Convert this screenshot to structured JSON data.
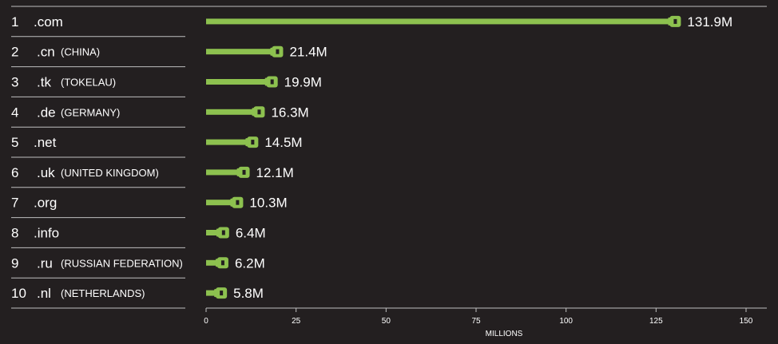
{
  "chart_data": {
    "type": "bar",
    "xlabel": "MILLIONS",
    "xlim": [
      0,
      150
    ],
    "xticks": [
      0,
      25,
      50,
      75,
      100,
      125,
      150
    ],
    "grid": false,
    "colors": {
      "bar": "#8dc14f",
      "background": "#231f20",
      "text": "#ffffff",
      "divider": "#bfbfbf"
    },
    "rows": [
      {
        "rank": "1",
        "tld": ".com",
        "country": "",
        "value": 131.9,
        "label": "131.9M"
      },
      {
        "rank": "2",
        "tld": ".cn",
        "country": "(CHINA)",
        "value": 21.4,
        "label": "21.4M"
      },
      {
        "rank": "3",
        "tld": ".tk",
        "country": "(TOKELAU)",
        "value": 19.9,
        "label": "19.9M"
      },
      {
        "rank": "4",
        "tld": ".de",
        "country": "(GERMANY)",
        "value": 16.3,
        "label": "16.3M"
      },
      {
        "rank": "5",
        "tld": ".net",
        "country": "",
        "value": 14.5,
        "label": "14.5M"
      },
      {
        "rank": "6",
        "tld": ".uk",
        "country": "(UNITED KINGDOM)",
        "value": 12.1,
        "label": "12.1M"
      },
      {
        "rank": "7",
        "tld": ".org",
        "country": "",
        "value": 10.3,
        "label": "10.3M"
      },
      {
        "rank": "8",
        "tld": ".info",
        "country": "",
        "value": 6.4,
        "label": "6.4M"
      },
      {
        "rank": "9",
        "tld": ".ru",
        "country": "(RUSSIAN FEDERATION)",
        "value": 6.2,
        "label": "6.2M"
      },
      {
        "rank": "10",
        "tld": ".nl",
        "country": "(NETHERLANDS)",
        "value": 5.8,
        "label": "5.8M"
      }
    ]
  }
}
